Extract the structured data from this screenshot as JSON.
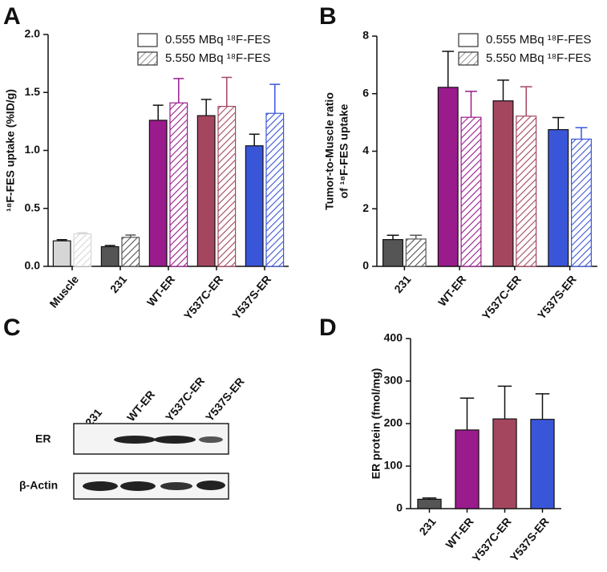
{
  "chart_data": [
    {
      "type": "bar",
      "panel": "A",
      "ylabel": "¹⁸F-FES uptake (%ID/g)",
      "categories": [
        "Muscle",
        "231",
        "WT-ER",
        "Y537C-ER",
        "Y537S-ER"
      ],
      "colors": [
        "#d6d6d6",
        "#555555",
        "#9a1b8c",
        "#a5465f",
        "#3a56d8"
      ],
      "series": [
        {
          "name": "0.555 MBq ¹⁸F-FES",
          "color": "#ffffff",
          "hatch": false,
          "values": [
            0.22,
            0.17,
            1.26,
            1.3,
            1.04
          ],
          "errors": [
            0.01,
            0.01,
            0.13,
            0.14,
            0.1
          ]
        },
        {
          "name": "5.550 MBq ¹⁸F-FES",
          "color": "#999999",
          "hatch": true,
          "values": [
            0.28,
            0.25,
            1.41,
            1.38,
            1.32
          ],
          "errors": [
            0.01,
            0.02,
            0.21,
            0.25,
            0.25
          ]
        }
      ],
      "ylim": [
        0,
        2
      ],
      "yticks": [
        {
          "value": 0,
          "label": "0.0"
        },
        0.5,
        {
          "value": 1,
          "label": "1.0"
        },
        1.5,
        {
          "value": 2,
          "label": "2.0"
        }
      ],
      "grid": false
    },
    {
      "type": "bar",
      "panel": "B",
      "ylabel": [
        "Tumor-to-Muscle ratio",
        "of ¹⁸F-FES uptake"
      ],
      "categories": [
        "231",
        "WT-ER",
        "Y537C-ER",
        "Y537S-ER"
      ],
      "colors": [
        "#555555",
        "#9a1b8c",
        "#a5465f",
        "#3a56d8"
      ],
      "series": [
        {
          "name": "0.555 MBq ¹⁸F-FES",
          "color": "#ffffff",
          "hatch": false,
          "values": [
            0.93,
            6.22,
            5.75,
            4.75
          ],
          "errors": [
            0.15,
            1.25,
            0.72,
            0.42
          ]
        },
        {
          "name": "5.550 MBq ¹⁸F-FES",
          "color": "#999999",
          "hatch": true,
          "values": [
            0.95,
            5.18,
            5.22,
            4.42
          ],
          "errors": [
            0.13,
            0.9,
            1.02,
            0.4
          ]
        }
      ],
      "ylim": [
        0,
        8
      ],
      "yticks": [
        0,
        2,
        4,
        6,
        8
      ],
      "grid": false
    },
    {
      "type": "bar",
      "panel": "D",
      "ylabel": "ER protein (fmol/mg)",
      "categories": [
        "231",
        "WT-ER",
        "Y537C-ER",
        "Y537S-ER"
      ],
      "colors": [
        "#555555",
        "#9a1b8c",
        "#a5465f",
        "#3a56d8"
      ],
      "series": [
        {
          "hatch": false,
          "values": [
            22,
            185,
            211,
            210
          ],
          "errors": [
            3,
            75,
            77,
            60
          ]
        }
      ],
      "ylim": [
        0,
        400
      ],
      "yticks": [
        0,
        100,
        200,
        300,
        400
      ],
      "grid": false
    }
  ],
  "blot": {
    "panel": "C",
    "lanes": [
      "231",
      "WT-ER",
      "Y537C-ER",
      "Y537S-ER"
    ],
    "rows": [
      "ER",
      "β-Actin"
    ]
  }
}
